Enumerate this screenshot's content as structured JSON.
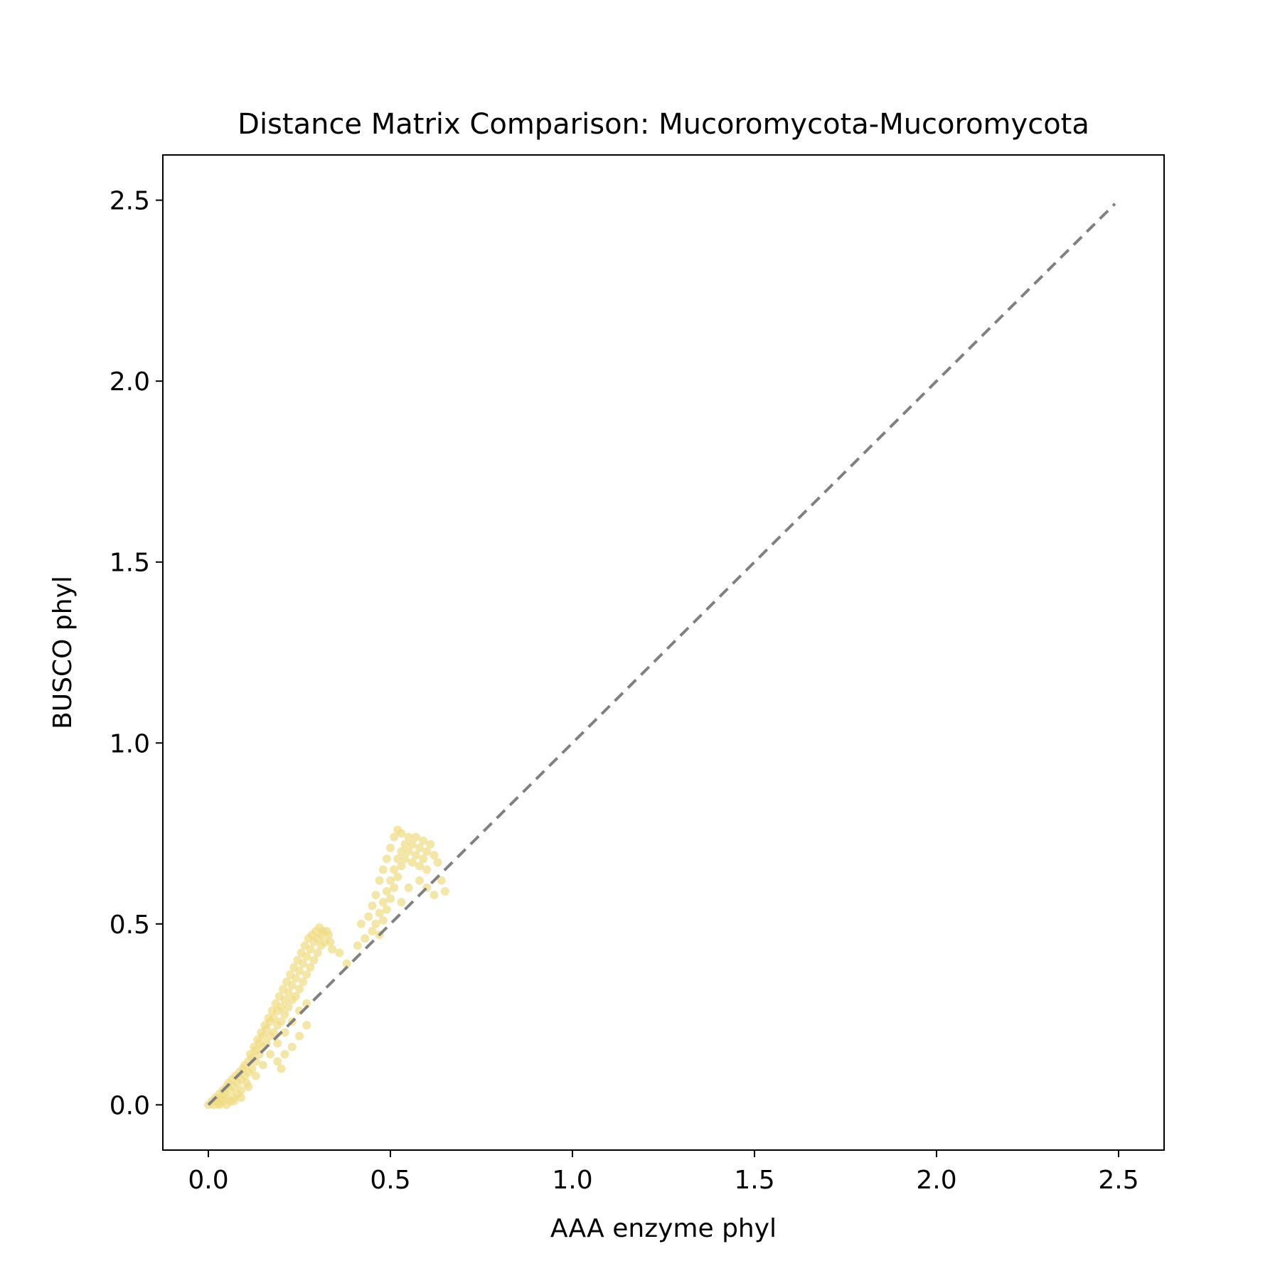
{
  "chart_data": {
    "type": "scatter",
    "title": "Distance Matrix Comparison: Mucoromycota-Mucoromycota",
    "xlabel": "AAA enzyme phyl",
    "ylabel": "BUSCO phyl",
    "xlim": [
      -0.125,
      2.625
    ],
    "ylim": [
      -0.125,
      2.625
    ],
    "xticks": [
      0.0,
      0.5,
      1.0,
      1.5,
      2.0,
      2.5
    ],
    "yticks": [
      0.0,
      0.5,
      1.0,
      1.5,
      2.0,
      2.5
    ],
    "xtick_labels": [
      "0.0",
      "0.5",
      "1.0",
      "1.5",
      "2.0",
      "2.5"
    ],
    "ytick_labels": [
      "0.0",
      "0.5",
      "1.0",
      "1.5",
      "2.0",
      "2.5"
    ],
    "grid": false,
    "legend": "none",
    "point_color": "#f0dc82",
    "point_alpha": 0.7,
    "reference_line": {
      "from": [
        0.0,
        0.0
      ],
      "to": [
        2.49,
        2.49
      ],
      "style": "dashed",
      "color": "#808080"
    },
    "points": [
      [
        0.0,
        0.0
      ],
      [
        0.01,
        0.01
      ],
      [
        0.015,
        0.0
      ],
      [
        0.02,
        0.02
      ],
      [
        0.025,
        0.01
      ],
      [
        0.03,
        0.03
      ],
      [
        0.03,
        0.005
      ],
      [
        0.035,
        0.02
      ],
      [
        0.04,
        0.04
      ],
      [
        0.04,
        0.01
      ],
      [
        0.045,
        0.03
      ],
      [
        0.05,
        0.05
      ],
      [
        0.05,
        0.02
      ],
      [
        0.055,
        0.06
      ],
      [
        0.06,
        0.04
      ],
      [
        0.06,
        0.01
      ],
      [
        0.065,
        0.07
      ],
      [
        0.07,
        0.05
      ],
      [
        0.07,
        0.02
      ],
      [
        0.075,
        0.08
      ],
      [
        0.08,
        0.06
      ],
      [
        0.08,
        0.03
      ],
      [
        0.085,
        0.09
      ],
      [
        0.09,
        0.07
      ],
      [
        0.09,
        0.04
      ],
      [
        0.095,
        0.1
      ],
      [
        0.1,
        0.08
      ],
      [
        0.1,
        0.11
      ],
      [
        0.105,
        0.06
      ],
      [
        0.11,
        0.12
      ],
      [
        0.11,
        0.09
      ],
      [
        0.115,
        0.14
      ],
      [
        0.12,
        0.1
      ],
      [
        0.12,
        0.13
      ],
      [
        0.125,
        0.16
      ],
      [
        0.13,
        0.12
      ],
      [
        0.13,
        0.15
      ],
      [
        0.135,
        0.18
      ],
      [
        0.14,
        0.14
      ],
      [
        0.14,
        0.17
      ],
      [
        0.145,
        0.2
      ],
      [
        0.15,
        0.16
      ],
      [
        0.15,
        0.19
      ],
      [
        0.155,
        0.22
      ],
      [
        0.16,
        0.17
      ],
      [
        0.16,
        0.21
      ],
      [
        0.165,
        0.24
      ],
      [
        0.17,
        0.19
      ],
      [
        0.17,
        0.23
      ],
      [
        0.175,
        0.26
      ],
      [
        0.18,
        0.2
      ],
      [
        0.18,
        0.24
      ],
      [
        0.185,
        0.28
      ],
      [
        0.19,
        0.22
      ],
      [
        0.19,
        0.26
      ],
      [
        0.195,
        0.3
      ],
      [
        0.2,
        0.23
      ],
      [
        0.2,
        0.27
      ],
      [
        0.205,
        0.32
      ],
      [
        0.21,
        0.25
      ],
      [
        0.21,
        0.29
      ],
      [
        0.215,
        0.34
      ],
      [
        0.22,
        0.27
      ],
      [
        0.22,
        0.31
      ],
      [
        0.225,
        0.36
      ],
      [
        0.23,
        0.29
      ],
      [
        0.23,
        0.33
      ],
      [
        0.235,
        0.38
      ],
      [
        0.24,
        0.3
      ],
      [
        0.24,
        0.35
      ],
      [
        0.245,
        0.4
      ],
      [
        0.25,
        0.32
      ],
      [
        0.25,
        0.37
      ],
      [
        0.255,
        0.42
      ],
      [
        0.26,
        0.34
      ],
      [
        0.26,
        0.39
      ],
      [
        0.265,
        0.44
      ],
      [
        0.27,
        0.36
      ],
      [
        0.27,
        0.41
      ],
      [
        0.275,
        0.46
      ],
      [
        0.28,
        0.38
      ],
      [
        0.28,
        0.43
      ],
      [
        0.285,
        0.47
      ],
      [
        0.29,
        0.4
      ],
      [
        0.29,
        0.45
      ],
      [
        0.295,
        0.48
      ],
      [
        0.3,
        0.42
      ],
      [
        0.3,
        0.46
      ],
      [
        0.305,
        0.49
      ],
      [
        0.31,
        0.44
      ],
      [
        0.31,
        0.47
      ],
      [
        0.315,
        0.48
      ],
      [
        0.32,
        0.45
      ],
      [
        0.325,
        0.48
      ],
      [
        0.33,
        0.47
      ],
      [
        0.335,
        0.45
      ],
      [
        0.34,
        0.43
      ],
      [
        0.36,
        0.42
      ],
      [
        0.38,
        0.39
      ],
      [
        0.41,
        0.44
      ],
      [
        0.42,
        0.5
      ],
      [
        0.43,
        0.46
      ],
      [
        0.44,
        0.52
      ],
      [
        0.45,
        0.48
      ],
      [
        0.45,
        0.55
      ],
      [
        0.46,
        0.5
      ],
      [
        0.46,
        0.58
      ],
      [
        0.47,
        0.53
      ],
      [
        0.47,
        0.62
      ],
      [
        0.47,
        0.47
      ],
      [
        0.48,
        0.56
      ],
      [
        0.48,
        0.65
      ],
      [
        0.48,
        0.51
      ],
      [
        0.49,
        0.59
      ],
      [
        0.49,
        0.68
      ],
      [
        0.49,
        0.54
      ],
      [
        0.5,
        0.62
      ],
      [
        0.5,
        0.71
      ],
      [
        0.5,
        0.57
      ],
      [
        0.51,
        0.65
      ],
      [
        0.51,
        0.74
      ],
      [
        0.51,
        0.6
      ],
      [
        0.52,
        0.68
      ],
      [
        0.52,
        0.76
      ],
      [
        0.52,
        0.63
      ],
      [
        0.53,
        0.7
      ],
      [
        0.53,
        0.75
      ],
      [
        0.53,
        0.66
      ],
      [
        0.54,
        0.72
      ],
      [
        0.54,
        0.68
      ],
      [
        0.55,
        0.74
      ],
      [
        0.55,
        0.7
      ],
      [
        0.56,
        0.72
      ],
      [
        0.56,
        0.67
      ],
      [
        0.57,
        0.74
      ],
      [
        0.57,
        0.69
      ],
      [
        0.58,
        0.71
      ],
      [
        0.58,
        0.66
      ],
      [
        0.59,
        0.73
      ],
      [
        0.59,
        0.68
      ],
      [
        0.6,
        0.7
      ],
      [
        0.6,
        0.65
      ],
      [
        0.61,
        0.72
      ],
      [
        0.62,
        0.69
      ],
      [
        0.63,
        0.67
      ],
      [
        0.64,
        0.62
      ],
      [
        0.65,
        0.59
      ],
      [
        0.62,
        0.58
      ],
      [
        0.6,
        0.6
      ],
      [
        0.58,
        0.62
      ],
      [
        0.55,
        0.6
      ],
      [
        0.53,
        0.56
      ],
      [
        0.03,
        0.0
      ],
      [
        0.05,
        0.0
      ],
      [
        0.07,
        0.01
      ],
      [
        0.09,
        0.02
      ],
      [
        0.11,
        0.05
      ],
      [
        0.13,
        0.08
      ],
      [
        0.15,
        0.11
      ],
      [
        0.17,
        0.14
      ],
      [
        0.19,
        0.17
      ],
      [
        0.21,
        0.2
      ],
      [
        0.23,
        0.23
      ],
      [
        0.25,
        0.26
      ],
      [
        0.27,
        0.28
      ],
      [
        0.27,
        0.22
      ],
      [
        0.25,
        0.19
      ],
      [
        0.23,
        0.16
      ],
      [
        0.21,
        0.14
      ],
      [
        0.19,
        0.12
      ],
      [
        0.2,
        0.1
      ]
    ]
  }
}
